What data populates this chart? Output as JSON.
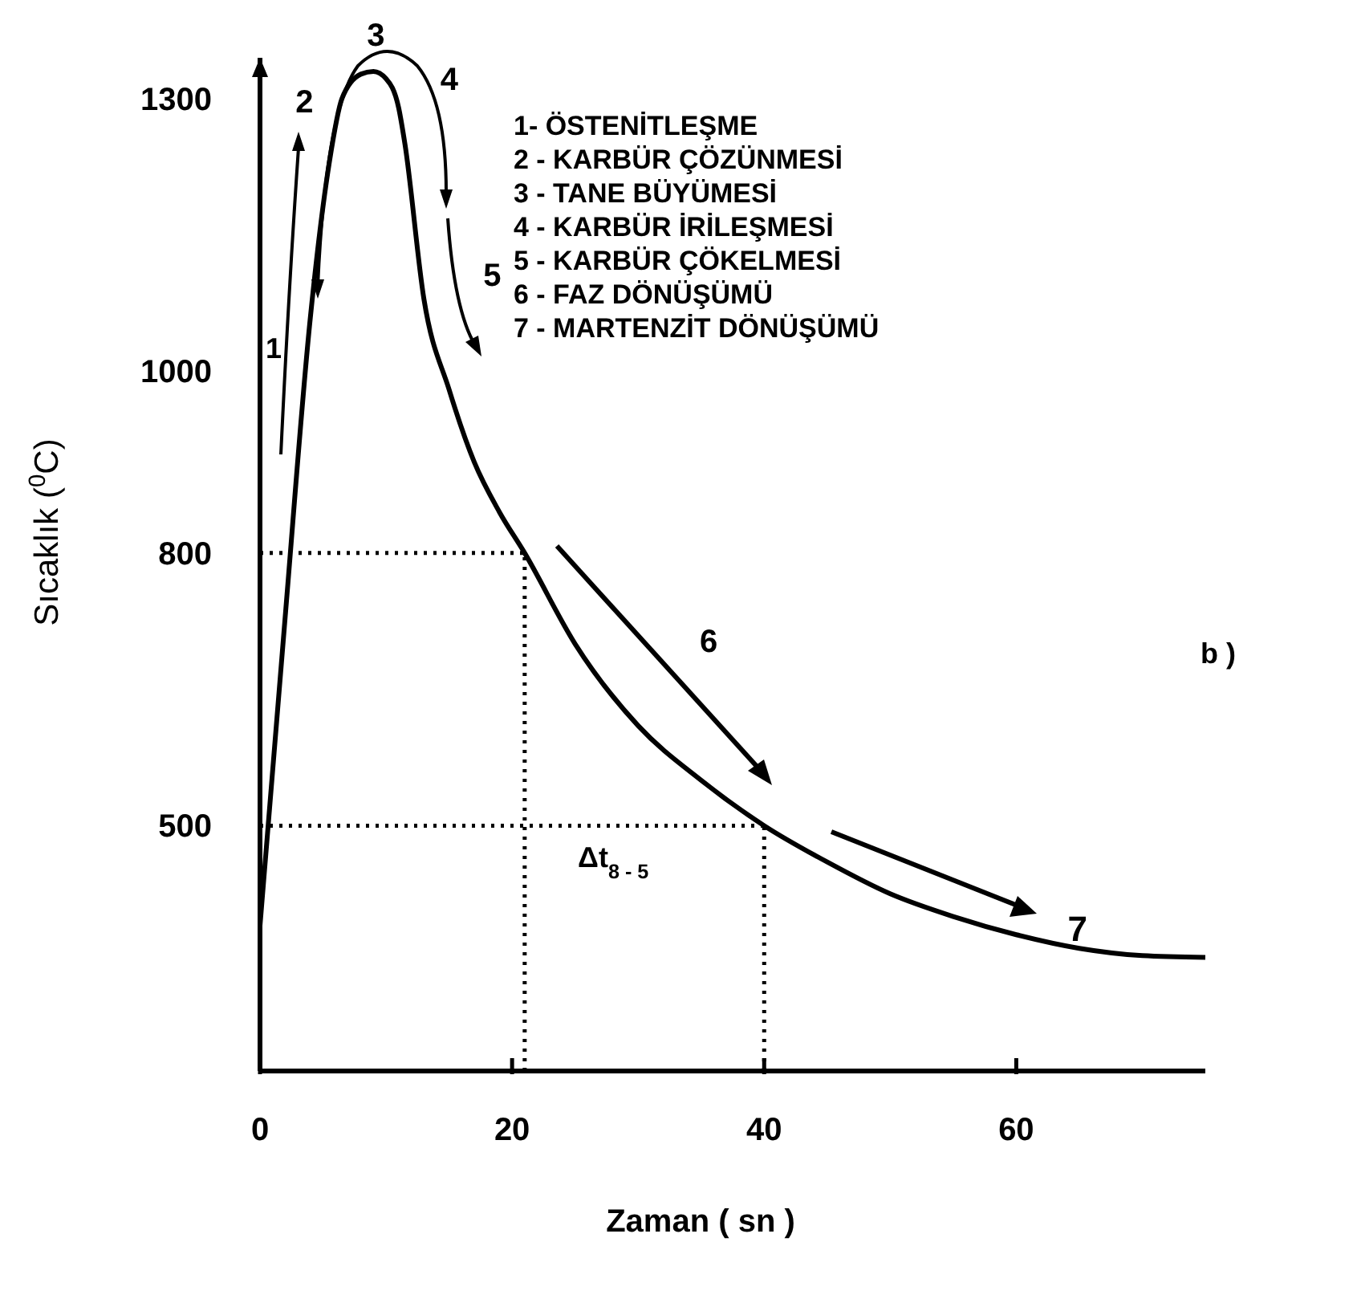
{
  "chart_data": {
    "type": "line",
    "xlabel": "Zaman ( sn )",
    "ylabel": "Sıcaklık ($^{0}$C)",
    "xlim": [
      0,
      75
    ],
    "ylim": [
      230,
      1345
    ],
    "xticks": [
      0,
      20,
      40,
      60
    ],
    "yticks": [
      500,
      800,
      1000,
      1300
    ],
    "grid": false,
    "line_style": "solid",
    "series": [
      {
        "color": "#000000",
        "x": [
          0,
          2,
          4,
          5.5,
          6.5,
          8,
          9,
          10,
          11,
          11.5,
          13,
          15,
          17,
          19,
          21,
          25,
          30,
          35,
          40,
          45,
          50,
          55,
          60,
          65,
          70,
          75
        ],
        "values": [
          390,
          730,
          1060,
          1230,
          1300,
          1327,
          1330,
          1322,
          1290,
          1250,
          1080,
          980,
          900,
          845,
          800,
          700,
          610,
          550,
          500,
          460,
          425,
          400,
          380,
          365,
          357,
          355
        ]
      }
    ],
    "ref_lines": [
      {
        "axis": "y",
        "value": 800,
        "line_style": "dotted"
      },
      {
        "axis": "y",
        "value": 500,
        "line_style": "dotted"
      },
      {
        "axis": "x",
        "value": 21,
        "line_style": "dotted"
      },
      {
        "axis": "x",
        "value": 40,
        "line_style": "dotted"
      }
    ],
    "annotations": [
      {
        "text": "1",
        "x": 3,
        "y": 960
      },
      {
        "text": "2",
        "x": 6,
        "y": 1280
      },
      {
        "text": "3",
        "x": 9,
        "y": 1330
      },
      {
        "text": "4",
        "x": 11,
        "y": 1290
      },
      {
        "text": "5",
        "x": 13,
        "y": 1080
      },
      "6",
      {
        "text": "7",
        "x": 60,
        "y": 380
      },
      "1- ÖSTENİTLEŞME",
      "2 - KARBÜR ÇÖZÜNMESİ",
      "3 - TANE BÜYÜMESİ",
      "4 - KARBÜR İRİLEŞMESİ",
      "5 - KARBÜR ÇÖKELMESİ",
      "6 - FAZ DÖNÜŞÜMÜ",
      "7 - MARTENZİT DÖNÜŞÜMÜ",
      "b )",
      "Δt$_{8 - 5}$"
    ]
  }
}
